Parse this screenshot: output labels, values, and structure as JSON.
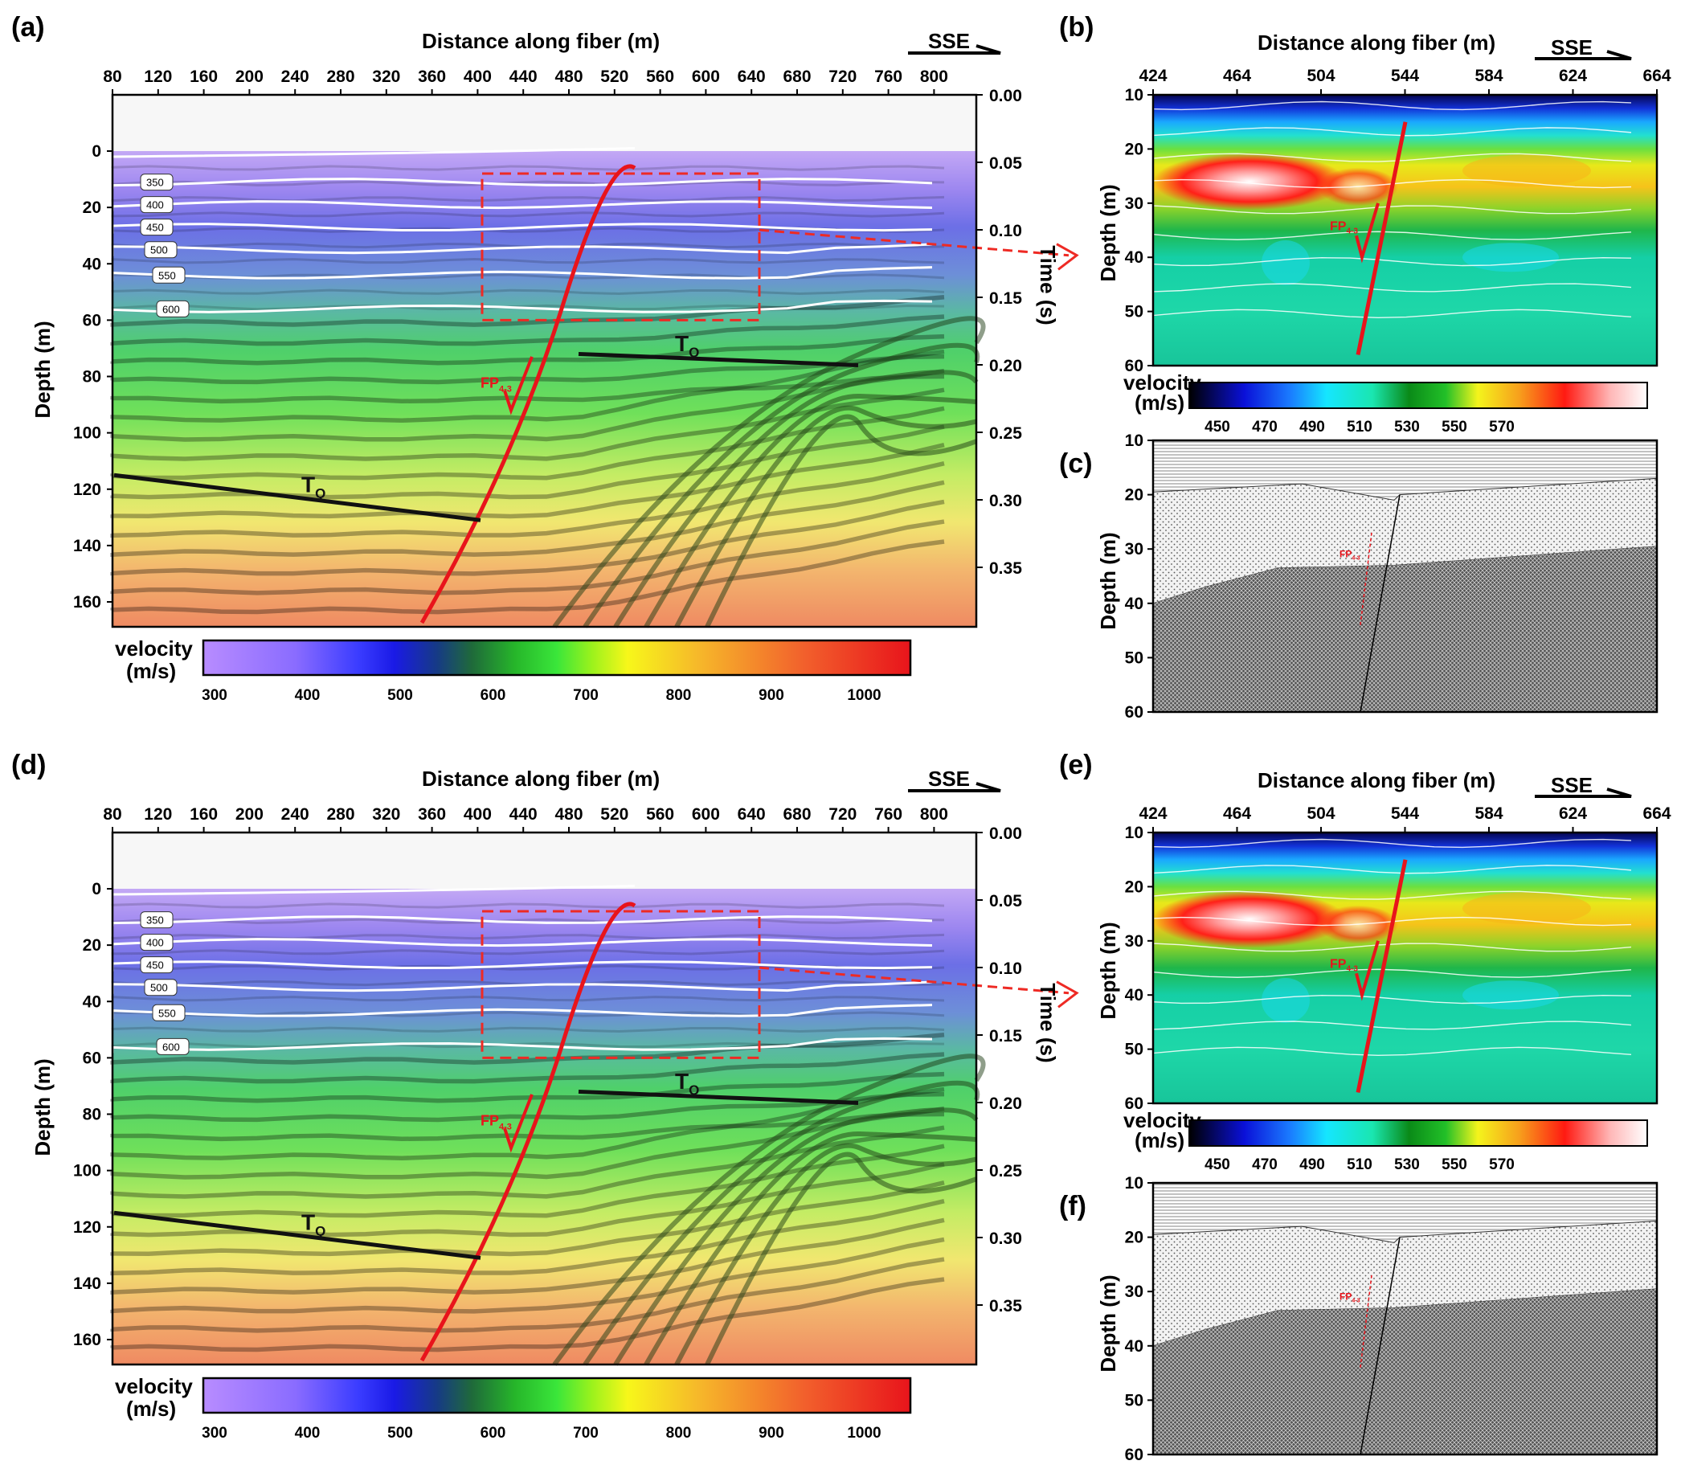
{
  "colors": {
    "fault": "#e8141b",
    "horizon": "#111111",
    "arrow": "#ee2a24",
    "contour": "#ffffff"
  },
  "figure": {
    "panels": [
      {
        "label": "(a)",
        "xlabel": "Distance  along fiber (m)",
        "ylabel": "Depth (m)",
        "y2label": "Time (s)",
        "direction": "SSE",
        "x_ticks": [
          "80",
          "120",
          "160",
          "200",
          "240",
          "280",
          "320",
          "360",
          "400",
          "440",
          "480",
          "520",
          "560",
          "600",
          "640",
          "680",
          "720",
          "760",
          "800"
        ],
        "depth_ticks": [
          "0",
          "20",
          "40",
          "60",
          "80",
          "100",
          "120",
          "140",
          "160"
        ],
        "time_ticks": [
          "0.00",
          "0.05",
          "0.10",
          "0.15",
          "0.20",
          "0.25",
          "0.30",
          "0.35"
        ],
        "contour_labels": [
          "350",
          "400",
          "450",
          "500",
          "550",
          "600"
        ],
        "fault_label": "FP",
        "fault_sub": "4-3",
        "horizon_label": "T",
        "horizon_sub": "Q",
        "colorbar": {
          "title_1": "velocity",
          "title_2": "(m/s)",
          "ticks": [
            "300",
            "400",
            "500",
            "600",
            "700",
            "800",
            "900",
            "1000"
          ]
        }
      },
      {
        "label": "(b)",
        "xlabel": "Distance  along fiber (m)",
        "ylabel": "Depth (m)",
        "direction": "SSE",
        "x_ticks": [
          "424",
          "464",
          "504",
          "544",
          "584",
          "624",
          "664"
        ],
        "depth_ticks": [
          "10",
          "20",
          "30",
          "40",
          "50",
          "60"
        ],
        "fault_label": "FP",
        "fault_sub": "4-3",
        "colorbar": {
          "title_1": "velocity",
          "title_2": "(m/s)",
          "ticks": [
            "450",
            "470",
            "490",
            "510",
            "530",
            "550",
            "570"
          ]
        }
      },
      {
        "label": "(c)",
        "ylabel": "Depth (m)",
        "depth_ticks": [
          "10",
          "20",
          "30",
          "40",
          "50",
          "60"
        ],
        "fault_label": "FP",
        "fault_sub": "4-3"
      },
      {
        "label": "(d)",
        "xlabel": "Distance  along fiber (m)",
        "ylabel": "Depth (m)",
        "direction": "SSE",
        "x_ticks": [
          "80",
          "120",
          "160",
          "200",
          "240",
          "280",
          "320",
          "360",
          "400",
          "440",
          "480",
          "520",
          "560",
          "600",
          "640",
          "680",
          "720",
          "760",
          "800"
        ],
        "depth_ticks": [
          "0",
          "20",
          "40",
          "60",
          "80",
          "100",
          "120",
          "140",
          "160"
        ],
        "time_ticks": [
          "0.00",
          "0.05",
          "0.10",
          "0.15",
          "0.20",
          "0.25",
          "0.30",
          "0.35"
        ],
        "contour_labels": [
          "350",
          "400",
          "450",
          "500",
          "550",
          "600"
        ],
        "fault_label": "FP",
        "fault_sub": "4-3",
        "horizon_label": "T",
        "horizon_sub": "Q",
        "colorbar": {
          "title_1": "velocity",
          "title_2": "(m/s)",
          "ticks": [
            "300",
            "400",
            "500",
            "600",
            "700",
            "800",
            "900",
            "1000"
          ]
        }
      },
      {
        "label": "(e)",
        "xlabel": "Distance  along fiber (m)",
        "ylabel": "Depth (m)",
        "direction": "SSE",
        "x_ticks": [
          "424",
          "464",
          "504",
          "544",
          "584",
          "624",
          "664"
        ],
        "depth_ticks": [
          "10",
          "20",
          "30",
          "40",
          "50",
          "60"
        ],
        "fault_label": "FP",
        "fault_sub": "4-3",
        "colorbar": {
          "title_1": "velocity",
          "title_2": "(m/s)",
          "ticks": [
            "450",
            "470",
            "490",
            "510",
            "530",
            "550",
            "570"
          ]
        }
      },
      {
        "label": "(f)",
        "ylabel": "Depth (m)",
        "depth_ticks": [
          "10",
          "20",
          "30",
          "40",
          "50",
          "60"
        ],
        "fault_label": "FP",
        "fault_sub": "4-3"
      }
    ]
  }
}
